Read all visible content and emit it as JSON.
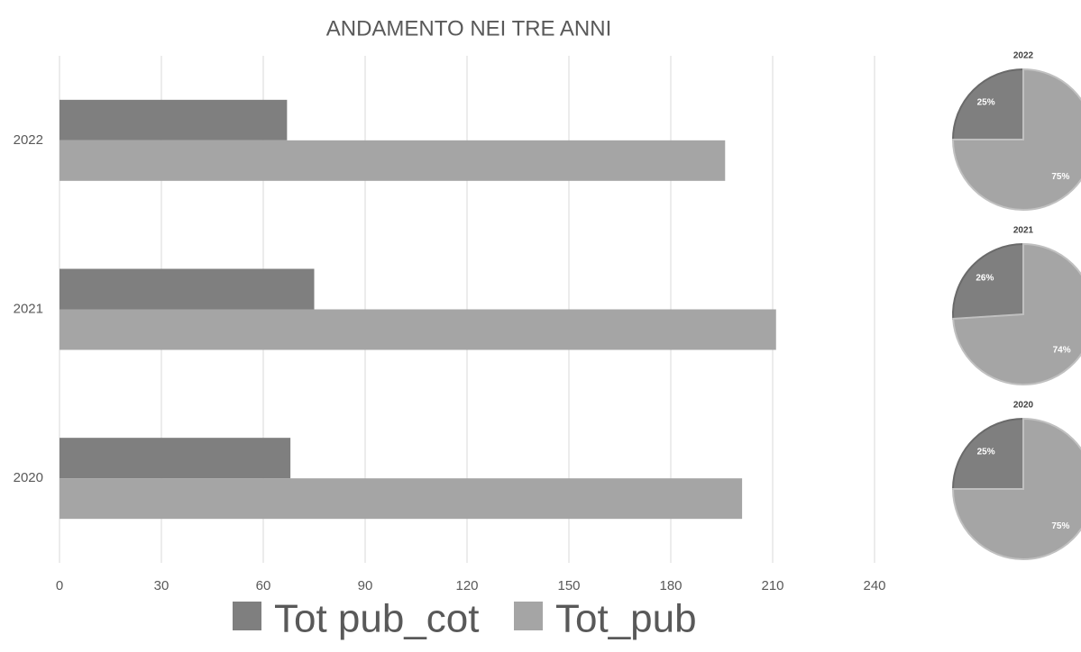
{
  "chart_data": [
    {
      "type": "bar",
      "orientation": "horizontal",
      "title": "ANDAMENTO NEI TRE ANNI",
      "categories": [
        "2022",
        "2021",
        "2020"
      ],
      "series": [
        {
          "name": "Tot pub_cot",
          "color": "#7f7f7f",
          "values": [
            67,
            75,
            68
          ]
        },
        {
          "name": "Tot_pub",
          "color": "#a5a5a5",
          "values": [
            196,
            211,
            201
          ]
        }
      ],
      "xlim": [
        0,
        240
      ],
      "xticks": [
        0,
        30,
        60,
        90,
        120,
        150,
        180,
        210,
        240
      ],
      "grid": true,
      "legend": "bottom"
    },
    {
      "type": "pie",
      "title": "2022",
      "values": [
        25,
        75
      ],
      "value_labels": [
        "25%",
        "75%"
      ],
      "colors": [
        "#7f7f7f",
        "#a5a5a5"
      ]
    },
    {
      "type": "pie",
      "title": "2021",
      "values": [
        26,
        74
      ],
      "value_labels": [
        "26%",
        "74%"
      ],
      "colors": [
        "#7f7f7f",
        "#a5a5a5"
      ]
    },
    {
      "type": "pie",
      "title": "2020",
      "values": [
        25,
        75
      ],
      "value_labels": [
        "25%",
        "75%"
      ],
      "colors": [
        "#7f7f7f",
        "#a5a5a5"
      ]
    }
  ]
}
